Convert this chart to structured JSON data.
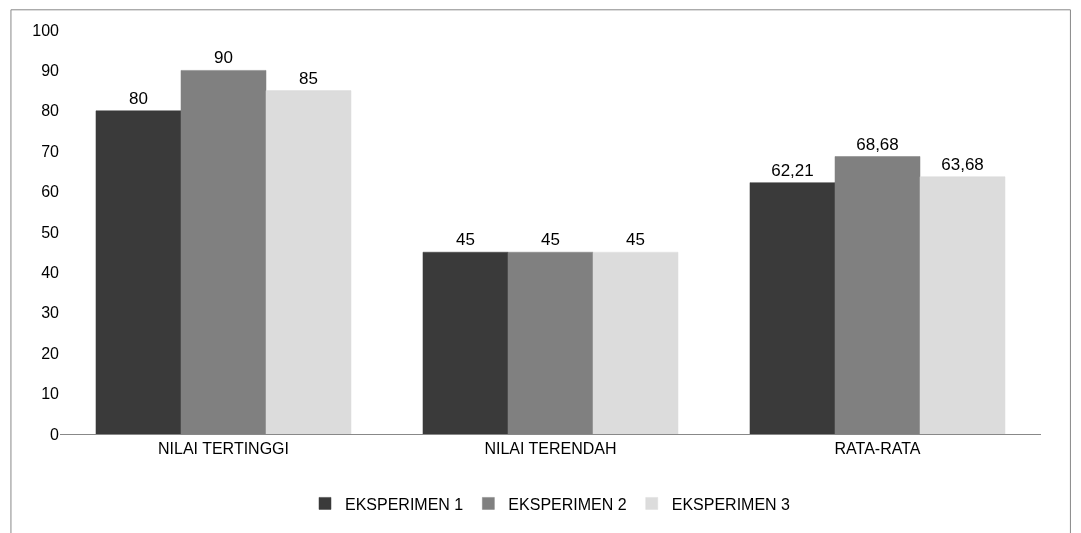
{
  "chart_data": {
    "type": "bar",
    "categories": [
      "NILAI TERTINGGI",
      "NILAI TERENDAH",
      "RATA-RATA"
    ],
    "series": [
      {
        "name": "EKSPERIMEN 1",
        "color": "#3a3a3a",
        "values": [
          80,
          45,
          62.21
        ],
        "value_labels": [
          "80",
          "45",
          "62,21"
        ]
      },
      {
        "name": "EKSPERIMEN 2",
        "color": "#808080",
        "values": [
          90,
          45,
          68.68
        ],
        "value_labels": [
          "90",
          "45",
          "68,68"
        ]
      },
      {
        "name": "EKSPERIMEN 3",
        "color": "#dcdcdc",
        "values": [
          85,
          45,
          63.68
        ],
        "value_labels": [
          "85",
          "45",
          "63,68"
        ]
      }
    ],
    "ylim": [
      0,
      100
    ],
    "yticks": [
      0,
      10,
      20,
      30,
      40,
      50,
      60,
      70,
      80,
      90,
      100
    ],
    "legend": "bottom"
  }
}
